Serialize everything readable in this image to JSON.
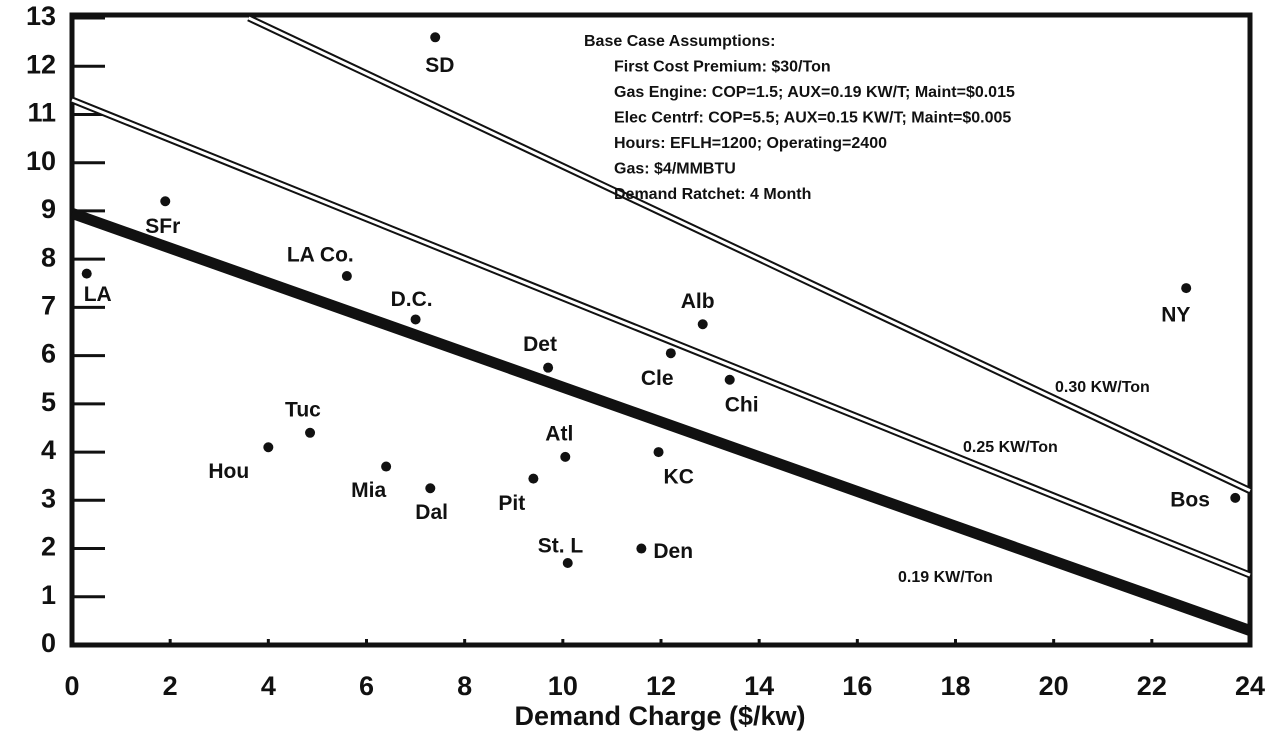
{
  "chart_data": {
    "type": "scatter",
    "x_label": "Demand Charge ($/kw)",
    "xlim": [
      0,
      24
    ],
    "ylim": [
      0,
      13
    ],
    "xticks": [
      0,
      2,
      4,
      6,
      8,
      10,
      12,
      14,
      16,
      18,
      20,
      22,
      24
    ],
    "yticks": [
      0,
      1,
      2,
      3,
      4,
      5,
      6,
      7,
      8,
      9,
      10,
      11,
      12,
      13
    ],
    "labels": [
      "LA",
      "SFr",
      "SD",
      "LA Co.",
      "D.C.",
      "Det",
      "Alb",
      "Cle",
      "Chi",
      "NY",
      "Tuc",
      "Hou",
      "Mia",
      "Dal",
      "Atl",
      "Pit",
      "KC",
      "St. L",
      "Den",
      "Bos"
    ],
    "x": [
      0.3,
      1.9,
      7.4,
      5.6,
      7.0,
      9.7,
      12.85,
      12.2,
      13.4,
      22.7,
      4.85,
      4.0,
      6.4,
      7.3,
      10.05,
      9.4,
      11.95,
      10.1,
      11.6,
      23.7
    ],
    "values": [
      7.7,
      9.2,
      12.6,
      7.65,
      6.75,
      5.75,
      6.65,
      6.05,
      5.5,
      7.4,
      4.4,
      4.1,
      3.7,
      3.25,
      3.9,
      3.45,
      4.0,
      1.7,
      2.0,
      3.05
    ],
    "color": "#111111",
    "lines": [
      {
        "name": "0.30 KW/Ton",
        "x": [
          3.6,
          24
        ],
        "values": [
          13,
          3.2
        ],
        "color": "#111111"
      },
      {
        "name": "0.25 KW/Ton",
        "x": [
          0,
          24
        ],
        "values": [
          11.3,
          1.45
        ],
        "color": "#111111"
      },
      {
        "name": "0.19 KW/Ton",
        "x": [
          0,
          24
        ],
        "values": [
          8.95,
          0.3
        ],
        "color": "#111111"
      }
    ],
    "annotations": [
      "Base Case Assumptions:",
      "First Cost Premium:  $30/Ton",
      "Gas Engine:  COP=1.5; AUX=0.19 KW/T; Maint=$0.015",
      "Elec Centrf:  COP=5.5; AUX=0.15 KW/T; Maint=$0.005",
      "Hours:  EFLH=1200; Operating=2400",
      "Gas:  $4/MMBTU",
      "Demand Ratchet:  4 Month"
    ]
  }
}
